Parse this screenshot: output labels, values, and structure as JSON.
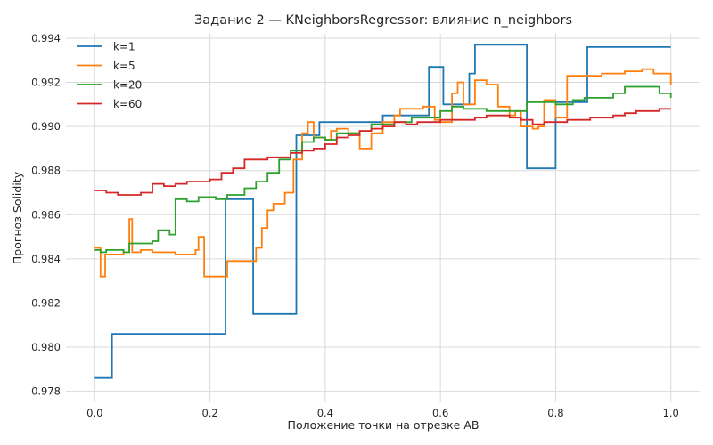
{
  "chart_data": {
    "type": "line",
    "title": "Задание 2 — KNeighborsRegressor: влияние n_neighbors",
    "xlabel": "Положение точки на отрезке AB",
    "ylabel": "Прогноз Solidity",
    "xlim": [
      -0.05,
      1.05
    ],
    "ylim": [
      0.9775,
      0.9942
    ],
    "xticks": [
      0.0,
      0.2,
      0.4,
      0.6,
      0.8,
      1.0
    ],
    "xtick_labels": [
      "0.0",
      "0.2",
      "0.4",
      "0.6",
      "0.8",
      "1.0"
    ],
    "yticks": [
      0.978,
      0.98,
      0.982,
      0.984,
      0.986,
      0.988,
      0.99,
      0.992,
      0.994
    ],
    "ytick_labels": [
      "0.978",
      "0.980",
      "0.982",
      "0.984",
      "0.986",
      "0.988",
      "0.990",
      "0.992",
      "0.994"
    ],
    "grid": true,
    "legend_position": "top-left",
    "series": [
      {
        "name": "k=1",
        "color": "#1f77b4",
        "step": true,
        "x": [
          0.0,
          0.03,
          0.227,
          0.275,
          0.35,
          0.39,
          0.5,
          0.58,
          0.605,
          0.65,
          0.66,
          0.75,
          0.8,
          0.855,
          1.0
        ],
        "y": [
          0.9786,
          0.9806,
          0.9867,
          0.9815,
          0.9896,
          0.9902,
          0.9905,
          0.9927,
          0.991,
          0.9924,
          0.9937,
          0.9881,
          0.9911,
          0.9936,
          0.9936
        ]
      },
      {
        "name": "k=5",
        "color": "#ff7f0e",
        "step": true,
        "x": [
          0.0,
          0.01,
          0.018,
          0.03,
          0.05,
          0.06,
          0.065,
          0.08,
          0.1,
          0.12,
          0.14,
          0.16,
          0.175,
          0.18,
          0.19,
          0.22,
          0.23,
          0.27,
          0.28,
          0.29,
          0.3,
          0.31,
          0.33,
          0.345,
          0.36,
          0.37,
          0.38,
          0.4,
          0.41,
          0.42,
          0.44,
          0.46,
          0.48,
          0.5,
          0.52,
          0.53,
          0.55,
          0.57,
          0.59,
          0.6,
          0.62,
          0.63,
          0.64,
          0.66,
          0.68,
          0.7,
          0.72,
          0.73,
          0.74,
          0.76,
          0.77,
          0.78,
          0.8,
          0.82,
          0.84,
          0.86,
          0.88,
          0.9,
          0.92,
          0.95,
          0.97,
          1.0
        ],
        "y": [
          0.9845,
          0.9832,
          0.9842,
          0.9842,
          0.9843,
          0.9858,
          0.9843,
          0.9844,
          0.9843,
          0.9843,
          0.9842,
          0.9842,
          0.9844,
          0.985,
          0.9832,
          0.9832,
          0.9839,
          0.9839,
          0.9845,
          0.9854,
          0.9862,
          0.9865,
          0.987,
          0.9885,
          0.9897,
          0.9902,
          0.9895,
          0.9894,
          0.9898,
          0.9899,
          0.9897,
          0.989,
          0.9897,
          0.9902,
          0.9905,
          0.9908,
          0.9908,
          0.9909,
          0.9903,
          0.9902,
          0.9915,
          0.992,
          0.991,
          0.9921,
          0.9919,
          0.9909,
          0.9905,
          0.9907,
          0.99,
          0.9899,
          0.99,
          0.9912,
          0.9904,
          0.9923,
          0.9923,
          0.9923,
          0.9924,
          0.9924,
          0.9925,
          0.9926,
          0.9924,
          0.9919
        ]
      },
      {
        "name": "k=20",
        "color": "#2ca02c",
        "step": true,
        "x": [
          0.0,
          0.01,
          0.02,
          0.05,
          0.06,
          0.1,
          0.11,
          0.13,
          0.14,
          0.16,
          0.18,
          0.21,
          0.23,
          0.26,
          0.28,
          0.3,
          0.32,
          0.34,
          0.36,
          0.38,
          0.4,
          0.42,
          0.44,
          0.46,
          0.48,
          0.5,
          0.52,
          0.55,
          0.57,
          0.6,
          0.62,
          0.64,
          0.66,
          0.68,
          0.7,
          0.72,
          0.75,
          0.78,
          0.8,
          0.83,
          0.85,
          0.87,
          0.9,
          0.92,
          0.95,
          0.98,
          1.0
        ],
        "y": [
          0.9844,
          0.9843,
          0.9844,
          0.9843,
          0.9847,
          0.9848,
          0.9853,
          0.9851,
          0.9867,
          0.9866,
          0.9868,
          0.9867,
          0.9869,
          0.9872,
          0.9875,
          0.9879,
          0.9885,
          0.9889,
          0.9893,
          0.9895,
          0.9894,
          0.9897,
          0.9897,
          0.9898,
          0.9901,
          0.9901,
          0.9902,
          0.9904,
          0.9904,
          0.9907,
          0.9909,
          0.9908,
          0.9908,
          0.9907,
          0.9907,
          0.9907,
          0.9911,
          0.9911,
          0.991,
          0.9912,
          0.9913,
          0.9913,
          0.9915,
          0.9918,
          0.9918,
          0.9915,
          0.9913
        ]
      },
      {
        "name": "k=60",
        "color": "#d62728",
        "step": true,
        "x": [
          0.0,
          0.02,
          0.04,
          0.06,
          0.08,
          0.1,
          0.12,
          0.14,
          0.16,
          0.18,
          0.2,
          0.22,
          0.24,
          0.26,
          0.28,
          0.3,
          0.32,
          0.34,
          0.36,
          0.38,
          0.4,
          0.42,
          0.44,
          0.46,
          0.48,
          0.5,
          0.52,
          0.54,
          0.56,
          0.58,
          0.6,
          0.62,
          0.64,
          0.66,
          0.68,
          0.7,
          0.72,
          0.74,
          0.76,
          0.78,
          0.8,
          0.82,
          0.84,
          0.86,
          0.88,
          0.9,
          0.92,
          0.94,
          0.96,
          0.98,
          1.0
        ],
        "y": [
          0.9871,
          0.987,
          0.9869,
          0.9869,
          0.987,
          0.9874,
          0.9873,
          0.9874,
          0.9875,
          0.9875,
          0.9876,
          0.9879,
          0.9881,
          0.9885,
          0.9885,
          0.9886,
          0.9886,
          0.9888,
          0.9889,
          0.989,
          0.9892,
          0.9895,
          0.9896,
          0.9898,
          0.9899,
          0.99,
          0.9902,
          0.9901,
          0.9902,
          0.9902,
          0.9903,
          0.9903,
          0.9903,
          0.9904,
          0.9905,
          0.9905,
          0.9904,
          0.9903,
          0.9901,
          0.9902,
          0.9902,
          0.9903,
          0.9903,
          0.9904,
          0.9904,
          0.9905,
          0.9906,
          0.9907,
          0.9907,
          0.9908,
          0.9908
        ]
      }
    ]
  }
}
